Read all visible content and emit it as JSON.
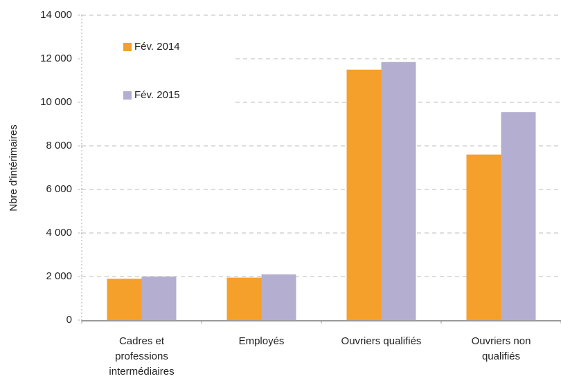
{
  "chart_data": {
    "type": "bar",
    "y_label": "Nbre d'intérimaires",
    "categories": [
      "Cadres et professions intermédiaires",
      "Employés",
      "Ouvriers qualifiés",
      "Ouvriers non qualifiés"
    ],
    "series": [
      {
        "name": "Fév. 2014",
        "color": "#f5a02a",
        "values": [
          1900,
          1950,
          11500,
          7600
        ]
      },
      {
        "name": "Fév. 2015",
        "color": "#b4aed0",
        "values": [
          2000,
          2100,
          11850,
          9550
        ]
      }
    ],
    "ylim": [
      0,
      14000
    ],
    "yticks": [
      0,
      {
        "value": 2000,
        "label": "2 000"
      },
      {
        "value": 4000,
        "label": "4 000"
      },
      {
        "value": 6000,
        "label": "6 000"
      },
      {
        "value": 8000,
        "label": "8 000"
      },
      {
        "value": 10000,
        "label": "10 000"
      },
      {
        "value": 12000,
        "label": "12 000"
      },
      {
        "value": 14000,
        "label": "14 000"
      }
    ],
    "grid": true,
    "legend": "top-left"
  }
}
